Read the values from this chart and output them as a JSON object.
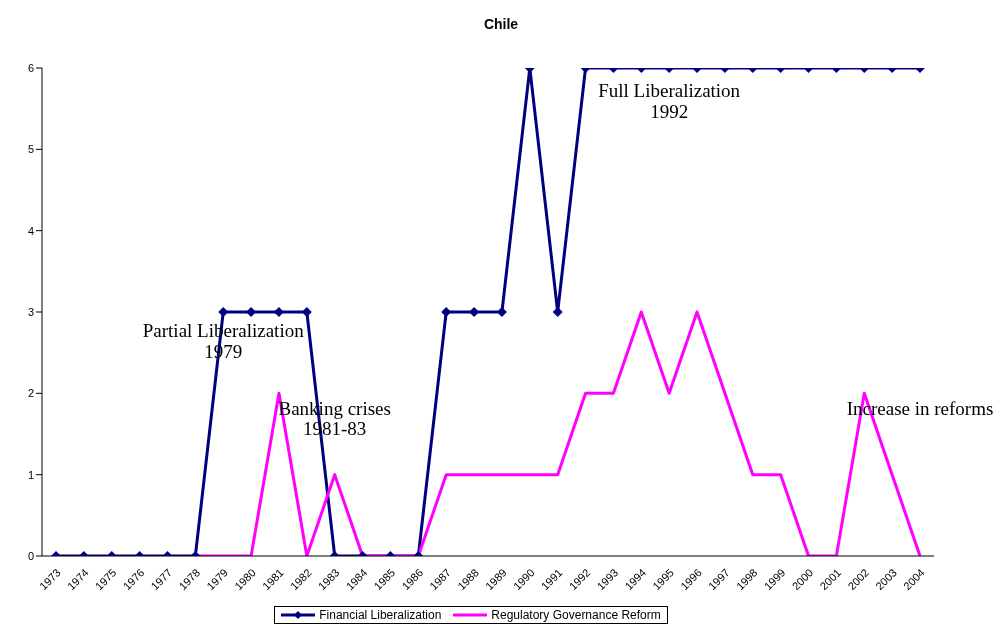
{
  "chart_data": {
    "type": "line",
    "title": "Chile",
    "categories": [
      "1973",
      "1974",
      "1975",
      "1976",
      "1977",
      "1978",
      "1979",
      "1980",
      "1981",
      "1982",
      "1983",
      "1984",
      "1985",
      "1986",
      "1987",
      "1988",
      "1989",
      "1990",
      "1991",
      "1992",
      "1993",
      "1994",
      "1995",
      "1996",
      "1997",
      "1998",
      "1999",
      "2000",
      "2001",
      "2002",
      "2003",
      "2004"
    ],
    "series": [
      {
        "name": "Financial Liberalization",
        "color": "#000080",
        "marker": "diamond",
        "values": [
          0,
          0,
          0,
          0,
          0,
          0,
          3,
          3,
          3,
          3,
          0,
          0,
          0,
          0,
          3,
          3,
          3,
          6,
          3,
          6,
          6,
          6,
          6,
          6,
          6,
          6,
          6,
          6,
          6,
          6,
          6,
          6
        ]
      },
      {
        "name": "Regulatory Governance Reform",
        "color": "#ff00ff",
        "marker": "none",
        "values": [
          null,
          null,
          null,
          null,
          null,
          0,
          0,
          0,
          2,
          0,
          1,
          0,
          0,
          0,
          1,
          1,
          1,
          1,
          1,
          2,
          2,
          3,
          2,
          3,
          2,
          1,
          1,
          0,
          0,
          2,
          1,
          0
        ]
      }
    ],
    "ylim": [
      0,
      6
    ],
    "yticks": [
      0,
      1,
      2,
      3,
      4,
      5,
      6
    ],
    "grid": false,
    "legend": "bottom",
    "annotations": [
      {
        "text": "Partial Liberalization\n1979",
        "x": "1979",
        "y": 2.9
      },
      "Banking crises\n1981-83",
      "Full Liberalization\n1992",
      "Increase in reforms"
    ]
  }
}
